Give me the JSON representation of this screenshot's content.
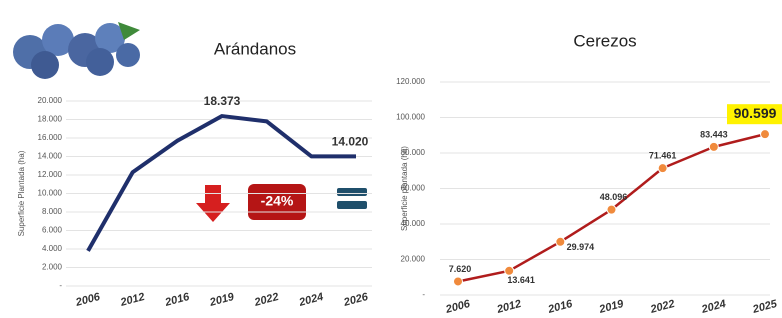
{
  "chart_data": [
    {
      "type": "line",
      "title": "Arándanos",
      "y_label": "Superficie Plantada (ha)",
      "categories": [
        "2006",
        "2012",
        "2016",
        "2019",
        "2022",
        "2024",
        "2026"
      ],
      "values": [
        3800,
        12300,
        15700,
        18373,
        17800,
        14020,
        14020
      ],
      "value_labels": [
        null,
        null,
        null,
        "18.373",
        null,
        null,
        "14.020"
      ],
      "color": "#1f2f6b",
      "annotation": "-24%",
      "ylim": [
        0,
        20000
      ],
      "yticks": [
        {
          "value": 0,
          "label": "-"
        },
        {
          "value": 2000,
          "label": "2.000"
        },
        {
          "value": 4000,
          "label": "4.000"
        },
        {
          "value": 6000,
          "label": "6.000"
        },
        {
          "value": 8000,
          "label": "8.000"
        },
        {
          "value": 10000,
          "label": "10.000"
        },
        {
          "value": 12000,
          "label": "12.000"
        },
        {
          "value": 14000,
          "label": "14.000"
        },
        {
          "value": 16000,
          "label": "16.000"
        },
        {
          "value": 18000,
          "label": "18.000"
        },
        {
          "value": 20000,
          "label": "20.000"
        }
      ],
      "grid": true
    },
    {
      "type": "line",
      "title": "Cerezos",
      "y_label": "Superficie plantada (ha)",
      "categories": [
        "2006",
        "2012",
        "2016",
        "2019",
        "2022",
        "2024",
        "2025"
      ],
      "values": [
        7620,
        13641,
        29974,
        48096,
        71461,
        83443,
        90599
      ],
      "value_labels": [
        "7.620",
        "13.641",
        "29.974",
        "48.096",
        "71.461",
        "83.443",
        "90.599"
      ],
      "color": "#b01c1c",
      "marker_color": "#f08a3c",
      "ylim": [
        0,
        120000
      ],
      "yticks": [
        {
          "value": 0,
          "label": "-"
        },
        {
          "value": 20000,
          "label": "20.000"
        },
        {
          "value": 40000,
          "label": "40.000"
        },
        {
          "value": 60000,
          "label": "60.000"
        },
        {
          "value": 80000,
          "label": "80.000"
        },
        {
          "value": 100000,
          "label": "100.000"
        },
        {
          "value": 120000,
          "label": "120.000"
        }
      ],
      "grid": true
    }
  ]
}
